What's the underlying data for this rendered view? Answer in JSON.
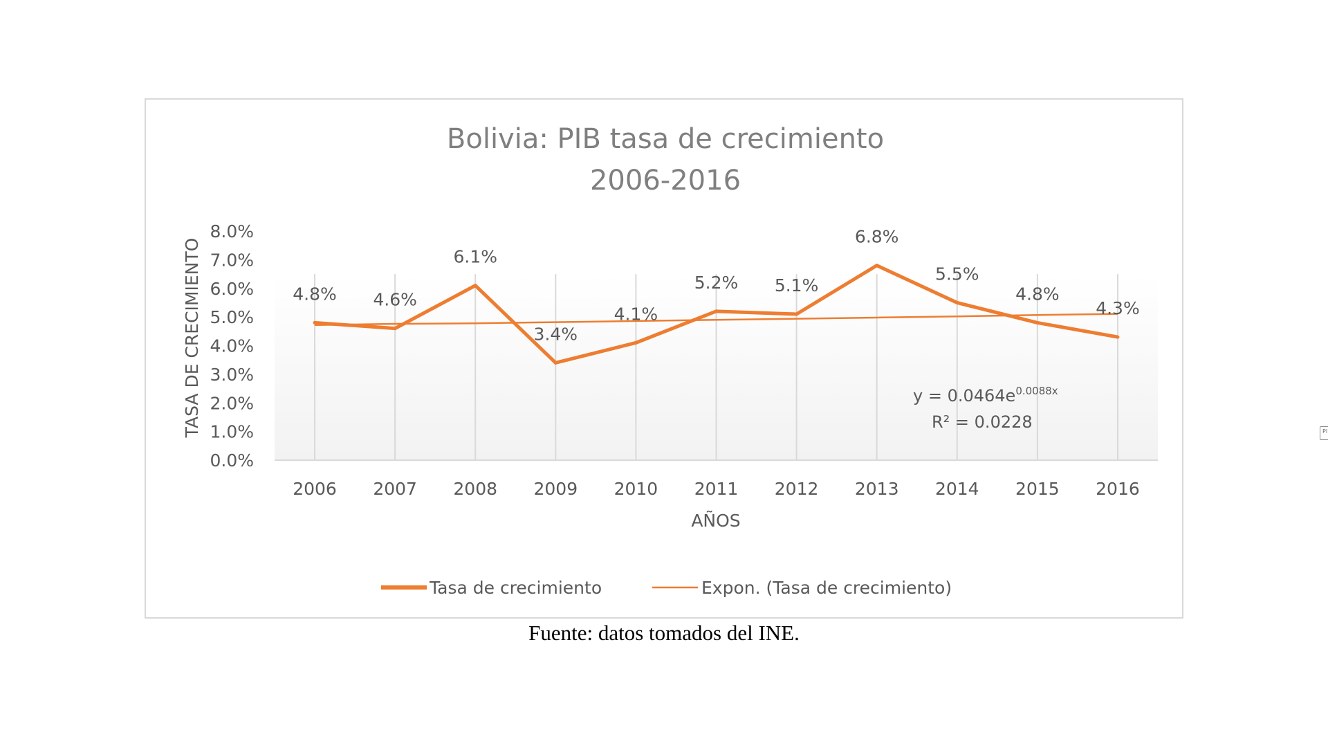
{
  "chart_data": {
    "type": "line",
    "title": "Bolivia: PIB tasa de crecimiento",
    "subtitle": "2006-2016",
    "xlabel": "AÑOS",
    "ylabel": "TASA DE CRECIMIENTO",
    "categories": [
      "2006",
      "2007",
      "2008",
      "2009",
      "2010",
      "2011",
      "2012",
      "2013",
      "2014",
      "2015",
      "2016"
    ],
    "ylim": [
      0,
      8
    ],
    "yticks": [
      "0.0%",
      "1.0%",
      "2.0%",
      "3.0%",
      "4.0%",
      "5.0%",
      "6.0%",
      "7.0%",
      "8.0%"
    ],
    "grid": "vertical",
    "legend": "bottom",
    "series": [
      {
        "name": "Tasa de crecimiento",
        "values": [
          4.8,
          4.6,
          6.1,
          3.4,
          4.1,
          5.2,
          5.1,
          6.8,
          5.5,
          4.8,
          4.3
        ],
        "labels": [
          "4.8%",
          "4.6%",
          "6.1%",
          "3.4%",
          "4.1%",
          "5.2%",
          "5.1%",
          "6.8%",
          "5.5%",
          "4.8%",
          "4.3%"
        ],
        "color": "#ED7D31"
      },
      {
        "name": "Expon. (Tasa de crecimiento)",
        "values": [
          4.72,
          4.76,
          4.78,
          4.82,
          4.86,
          4.9,
          4.94,
          4.98,
          5.02,
          5.07,
          5.11
        ],
        "color": "#ED7D31"
      }
    ],
    "trendline": {
      "equation_prefix": "y = 0.0464e",
      "equation_exponent": "0.0088x",
      "r_squared": "R² = 0.0228"
    }
  },
  "source": "Fuente: datos tomados del INE.",
  "edge_mark": "Pl",
  "colors": {
    "axis_text": "#595959",
    "title_text": "#7f7f7f",
    "gridline": "#d9d9d9",
    "line": "#ED7D31"
  }
}
